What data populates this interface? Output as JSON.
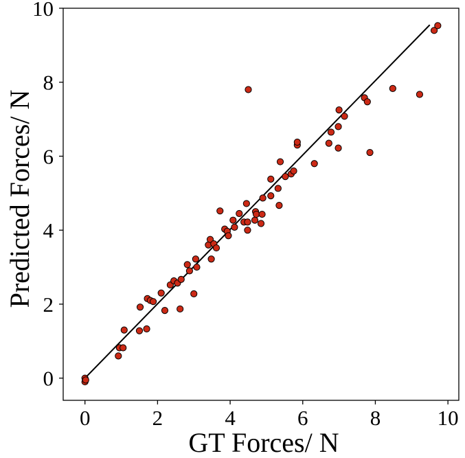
{
  "chart_data": {
    "type": "scatter",
    "xlabel": "GT Forces/ N",
    "ylabel": "Predicted Forces/ N",
    "xlim": [
      -0.6,
      10.3
    ],
    "ylim": [
      -0.6,
      10.0
    ],
    "xticks": [
      0,
      2,
      4,
      6,
      8,
      10
    ],
    "yticks": [
      0,
      2,
      4,
      6,
      8,
      10
    ],
    "grid": false,
    "legend": "none",
    "marker_color": "#cc2a16",
    "marker_edge_color": "#000000",
    "line_color": "#000000",
    "fit_line": {
      "x": [
        0.0,
        9.5
      ],
      "y": [
        0.0,
        9.55
      ]
    },
    "points": [
      [
        0.0,
        -0.1
      ],
      [
        0.0,
        0.0
      ],
      [
        0.02,
        -0.05
      ],
      [
        0.92,
        0.6
      ],
      [
        0.95,
        0.82
      ],
      [
        1.05,
        0.82
      ],
      [
        1.08,
        1.3
      ],
      [
        1.5,
        1.28
      ],
      [
        1.52,
        1.92
      ],
      [
        1.7,
        1.33
      ],
      [
        1.72,
        2.15
      ],
      [
        1.8,
        2.1
      ],
      [
        1.88,
        2.07
      ],
      [
        2.1,
        2.3
      ],
      [
        2.2,
        1.83
      ],
      [
        2.35,
        2.52
      ],
      [
        2.45,
        2.63
      ],
      [
        2.55,
        2.57
      ],
      [
        2.62,
        1.87
      ],
      [
        2.65,
        2.67
      ],
      [
        2.82,
        3.07
      ],
      [
        2.88,
        2.9
      ],
      [
        3.0,
        2.28
      ],
      [
        3.05,
        3.22
      ],
      [
        3.08,
        3.0
      ],
      [
        3.4,
        3.6
      ],
      [
        3.45,
        3.75
      ],
      [
        3.48,
        3.22
      ],
      [
        3.55,
        3.63
      ],
      [
        3.62,
        3.52
      ],
      [
        3.72,
        4.52
      ],
      [
        3.85,
        4.03
      ],
      [
        3.92,
        3.97
      ],
      [
        3.95,
        3.85
      ],
      [
        4.08,
        4.27
      ],
      [
        4.12,
        4.08
      ],
      [
        4.25,
        4.45
      ],
      [
        4.38,
        4.22
      ],
      [
        4.45,
        4.72
      ],
      [
        4.48,
        4.0
      ],
      [
        4.48,
        4.22
      ],
      [
        4.5,
        7.8
      ],
      [
        4.68,
        4.27
      ],
      [
        4.7,
        4.5
      ],
      [
        4.72,
        4.43
      ],
      [
        4.85,
        4.18
      ],
      [
        4.88,
        4.43
      ],
      [
        4.9,
        4.87
      ],
      [
        5.12,
        4.93
      ],
      [
        5.12,
        5.38
      ],
      [
        5.32,
        5.13
      ],
      [
        5.35,
        4.67
      ],
      [
        5.38,
        5.85
      ],
      [
        5.52,
        5.45
      ],
      [
        5.68,
        5.52
      ],
      [
        5.75,
        5.6
      ],
      [
        5.85,
        6.3
      ],
      [
        5.85,
        6.38
      ],
      [
        6.32,
        5.8
      ],
      [
        6.72,
        6.35
      ],
      [
        6.78,
        6.65
      ],
      [
        6.98,
        6.22
      ],
      [
        6.98,
        6.8
      ],
      [
        7.0,
        7.25
      ],
      [
        7.15,
        7.08
      ],
      [
        7.7,
        7.58
      ],
      [
        7.78,
        7.47
      ],
      [
        7.85,
        6.1
      ],
      [
        8.48,
        7.83
      ],
      [
        9.22,
        7.67
      ],
      [
        9.62,
        9.4
      ],
      [
        9.72,
        9.53
      ]
    ]
  }
}
